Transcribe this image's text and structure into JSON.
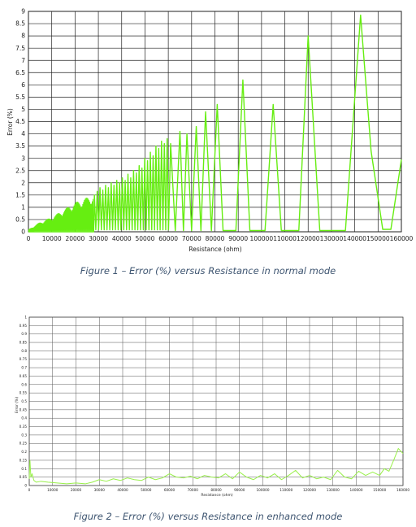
{
  "chart_data": [
    {
      "type": "line",
      "caption": "Figure 1 – Error (%) versus Resistance in normal mode",
      "xlabel": "Resistance (ohm)",
      "ylabel": "Error (%)",
      "xlim": [
        0,
        160000
      ],
      "ylim": [
        0,
        9
      ],
      "xticks": [
        0,
        10000,
        20000,
        30000,
        40000,
        50000,
        60000,
        70000,
        80000,
        90000,
        100000,
        110000,
        120000,
        130000,
        140000,
        150000,
        160000
      ],
      "yticks": [
        0,
        0.5,
        1,
        1.5,
        2,
        2.5,
        3,
        3.5,
        4,
        4.5,
        5,
        5.5,
        6,
        6.5,
        7,
        7.5,
        8,
        8.5,
        9
      ],
      "grid": true,
      "line_color": "#66ee11",
      "series": [
        {
          "x": [
            0,
            28000,
            28300,
            28900,
            29500,
            30100,
            30700,
            31300,
            31900,
            32500,
            33100,
            33700,
            34300,
            34900,
            35500,
            36100,
            36700,
            37300,
            37900,
            38500,
            39100,
            39700,
            40300,
            40900,
            41500,
            42100,
            42700,
            43300,
            43900,
            44500,
            45100,
            45700,
            46300,
            46900,
            47500,
            48100,
            48700,
            49300,
            49900,
            50500,
            51100,
            51700,
            52300,
            52900,
            53500,
            54100,
            54700,
            55300,
            55900,
            56500,
            57100,
            57700,
            58300,
            58900,
            59500,
            60100,
            61000,
            63000,
            65000,
            66500,
            68000,
            70000,
            72000,
            74000,
            76000,
            78500,
            81000,
            83500,
            86000,
            89000,
            92000,
            95000,
            98000,
            101500,
            105000,
            108500,
            112000,
            116000,
            120000,
            125000,
            130000,
            136000,
            142500,
            147000,
            152000,
            155500,
            160000
          ],
          "y": [
            0,
            0,
            1.5,
            0.08,
            1.65,
            0.08,
            1.8,
            0.08,
            1.7,
            0.08,
            1.9,
            0.08,
            1.8,
            0.08,
            2.0,
            0.08,
            1.9,
            0.08,
            2.1,
            0.08,
            2.0,
            0.08,
            2.2,
            0.08,
            2.1,
            0.08,
            2.35,
            0.08,
            2.2,
            0.08,
            2.5,
            0.08,
            2.4,
            0.08,
            2.7,
            0.08,
            2.6,
            0.08,
            3.0,
            0.08,
            2.9,
            0.08,
            3.25,
            0.08,
            3.1,
            0.08,
            3.5,
            0.08,
            3.4,
            0.08,
            3.7,
            0.08,
            3.6,
            0.08,
            3.8,
            0.08,
            3.6,
            0.05,
            4.1,
            0.05,
            4.0,
            0.05,
            4.3,
            0.05,
            4.9,
            0.05,
            5.2,
            0.05,
            0.05,
            0.05,
            6.2,
            0.05,
            0.05,
            0.05,
            5.2,
            0.05,
            0.05,
            0.05,
            8.0,
            0.05,
            0.05,
            0.05,
            8.85,
            3.3,
            0.1,
            0.1,
            2.95
          ]
        }
      ],
      "noise_region": [
        0,
        28000
      ],
      "noise_envelope": [
        [
          0,
          0.1
        ],
        [
          5000,
          0.4
        ],
        [
          10000,
          0.6
        ],
        [
          15000,
          0.9
        ],
        [
          20000,
          1.2
        ],
        [
          25000,
          1.4
        ],
        [
          28000,
          1.5
        ]
      ]
    },
    {
      "type": "line",
      "caption": "Figure 2 – Error (%) versus Resistance in enhanced mode",
      "xlabel": "Resistance (ohm)",
      "ylabel": "Error (%)",
      "xlim": [
        0,
        160000
      ],
      "ylim": [
        0,
        1
      ],
      "xticks": [
        0,
        10000,
        20000,
        30000,
        40000,
        50000,
        60000,
        70000,
        80000,
        90000,
        100000,
        110000,
        120000,
        130000,
        140000,
        150000,
        160000
      ],
      "yticks": [
        0,
        0.05,
        0.1,
        0.15,
        0.2,
        0.25,
        0.3,
        0.35,
        0.4,
        0.45,
        0.5,
        0.55,
        0.6,
        0.65,
        0.7,
        0.75,
        0.8,
        0.85,
        0.9,
        0.95,
        1
      ],
      "grid": true,
      "line_color": "#99f04a",
      "series": [
        {
          "x": [
            0,
            300,
            700,
            1200,
            2000,
            3000,
            5000,
            8000,
            12000,
            16000,
            20000,
            24000,
            27000,
            30000,
            33000,
            36000,
            39000,
            42000,
            45000,
            48000,
            51000,
            54000,
            57000,
            60000,
            63000,
            66000,
            69000,
            72000,
            75000,
            78000,
            81000,
            84000,
            87000,
            90000,
            93000,
            96000,
            99000,
            102000,
            105000,
            108000,
            111000,
            114000,
            117000,
            120000,
            123000,
            126000,
            129000,
            132000,
            135000,
            138000,
            141000,
            144000,
            147000,
            150000,
            152000,
            154000,
            156000,
            158000,
            160000
          ],
          "y": [
            0.04,
            0.15,
            0.05,
            0.07,
            0.03,
            0.02,
            0.025,
            0.02,
            0.015,
            0.01,
            0.015,
            0.01,
            0.02,
            0.035,
            0.025,
            0.04,
            0.03,
            0.045,
            0.035,
            0.03,
            0.05,
            0.035,
            0.045,
            0.07,
            0.05,
            0.045,
            0.055,
            0.04,
            0.06,
            0.05,
            0.045,
            0.07,
            0.04,
            0.08,
            0.05,
            0.035,
            0.06,
            0.045,
            0.07,
            0.035,
            0.06,
            0.09,
            0.045,
            0.06,
            0.04,
            0.05,
            0.035,
            0.09,
            0.05,
            0.04,
            0.085,
            0.06,
            0.08,
            0.06,
            0.1,
            0.085,
            0.15,
            0.22,
            0.19
          ]
        }
      ]
    }
  ]
}
